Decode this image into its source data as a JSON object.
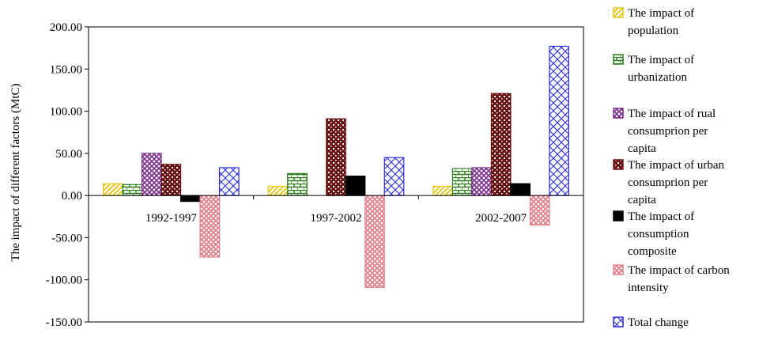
{
  "chart_data": {
    "type": "bar",
    "title": "",
    "xlabel": "",
    "ylabel": "The impact of different factors (MtC)",
    "ylim": [
      -150,
      200
    ],
    "yticks": [
      -150,
      -100,
      -50,
      0,
      50,
      100,
      150,
      200
    ],
    "ytick_labels": [
      "-150.00",
      "-100.00",
      "-50.00",
      "0.00",
      "50.00",
      "100.00",
      "150.00",
      "200.00"
    ],
    "grid": false,
    "legend_position": "right",
    "categories": [
      "1992-1997",
      "1997-2002",
      "2002-2007"
    ],
    "series": [
      {
        "name": "The impact of population",
        "legend_lines": [
          "The impact of",
          "population"
        ],
        "values": [
          14,
          11,
          11
        ],
        "color": "#e8c61a",
        "pattern": "diag"
      },
      {
        "name": "The impact of urbanization",
        "legend_lines": [
          "The impact of",
          "urbanization"
        ],
        "values": [
          13,
          26,
          32
        ],
        "color": "#2e7d1e",
        "pattern": "brick"
      },
      {
        "name": "The impact of rual consumprion per capita",
        "legend_lines": [
          "The impact of rual",
          "consumprion per",
          "capita"
        ],
        "values": [
          50,
          0,
          33
        ],
        "color": "#7b2b8c",
        "pattern": "zigzag"
      },
      {
        "name": "The impact of urban consumprion per capita",
        "legend_lines": [
          "The impact of urban",
          "consumprion per",
          "capita"
        ],
        "values": [
          37,
          91,
          121
        ],
        "color": "#6b1414",
        "pattern": "dots"
      },
      {
        "name": "The impact of consumption composite",
        "legend_lines": [
          "The impact of",
          "consumption",
          "composite"
        ],
        "values": [
          -7,
          23,
          14
        ],
        "color": "#000000",
        "pattern": "solid"
      },
      {
        "name": "The impact of carbon intensity",
        "legend_lines": [
          "The impact of carbon",
          "intensity"
        ],
        "values": [
          -73,
          -109,
          -35
        ],
        "color": "#e0828b",
        "pattern": "check"
      },
      {
        "name": "Total change",
        "legend_lines": [
          "Total change"
        ],
        "values": [
          33,
          45,
          177
        ],
        "color": "#2b2bdc",
        "pattern": "cross"
      }
    ]
  }
}
